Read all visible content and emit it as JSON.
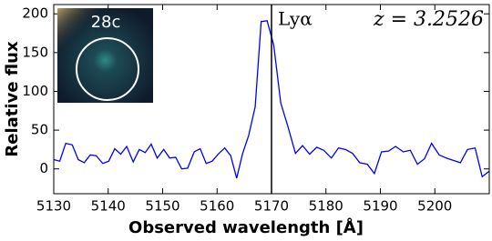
{
  "chart_data": {
    "type": "line",
    "xlabel": "Observed wavelength [Å]",
    "ylabel": "Relative flux",
    "annotations": {
      "line_label": "Lyα",
      "redshift": "z = 3.2526",
      "inset_label": "28c"
    },
    "vline": 5170,
    "x": [
      5130,
      5131.1,
      5132.2,
      5133.4,
      5134.5,
      5135.6,
      5136.7,
      5137.8,
      5139.0,
      5140.1,
      5141.2,
      5142.3,
      5143.4,
      5144.6,
      5145.7,
      5146.8,
      5147.9,
      5149.0,
      5150.2,
      5151.3,
      5152.4,
      5153.5,
      5154.6,
      5155.8,
      5156.9,
      5158.0,
      5159.1,
      5160.2,
      5161.4,
      5162.5,
      5163.6,
      5164.7,
      5165.8,
      5167.0,
      5168.1,
      5169.2,
      5170.4,
      5171.7,
      5173.0,
      5174.4,
      5175.7,
      5177.0,
      5178.3,
      5179.6,
      5181.0,
      5182.3,
      5183.6,
      5184.9,
      5186.2,
      5187.6,
      5188.9,
      5190.2,
      5191.5,
      5192.8,
      5194.2,
      5195.5,
      5196.8,
      5198.1,
      5199.4,
      5200.8,
      5202.1,
      5203.4,
      5204.7,
      5206.0,
      5207.4,
      5208.7,
      5210.0
    ],
    "series": [
      {
        "color": "#0000ff",
        "values": [
          12,
          10,
          33,
          31,
          12,
          8,
          18,
          17,
          7,
          10,
          26,
          19,
          29,
          9,
          25,
          21,
          32,
          14,
          25,
          14,
          15,
          0,
          1,
          22,
          26,
          7,
          10,
          19,
          27,
          17,
          -12,
          20,
          43,
          80,
          190,
          191,
          160,
          85,
          55,
          20,
          30,
          19,
          28,
          24,
          14,
          27,
          25,
          20,
          8,
          6,
          -6,
          22,
          23,
          29,
          22,
          24,
          6,
          13,
          33,
          18,
          14,
          11,
          8,
          25,
          27,
          -10,
          -3
        ]
      }
    ],
    "xlim": [
      5130,
      5210
    ],
    "xticks": [
      5130,
      5140,
      5150,
      5160,
      5170,
      5180,
      5190,
      5200
    ],
    "ylim": [
      -32,
      212
    ],
    "yticks": [
      0,
      50,
      100,
      150,
      200
    ],
    "grid": false
  }
}
